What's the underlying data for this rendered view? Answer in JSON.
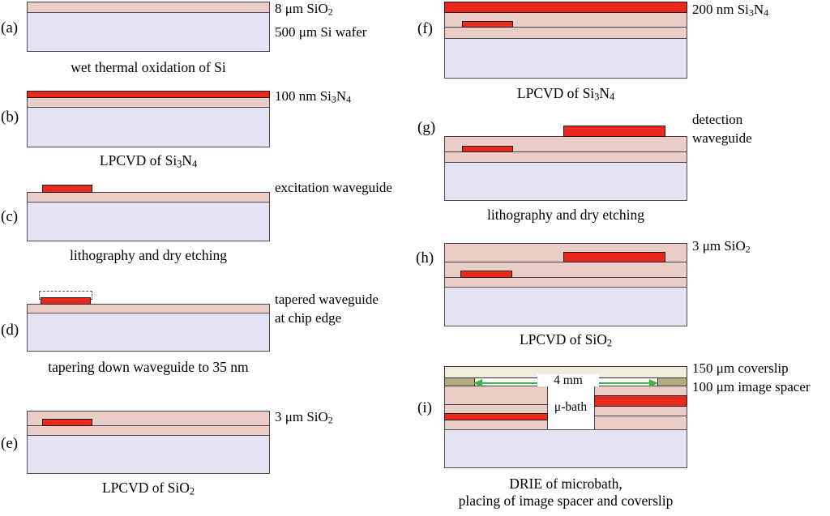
{
  "colors": {
    "oxide_pink": "#ebcdc7",
    "silicon_lavender": "#e5e2f1",
    "nitride_red": "#ea281c",
    "coverslip_cream": "#f0edde",
    "spacer_olive": "#b3ab82",
    "dimension_arrow_green": "#3fb347"
  },
  "panels": {
    "a": {
      "letter": "(a)",
      "labels": {
        "oxide": "8 μm SiO₂",
        "wafer": "500 μm Si wafer"
      },
      "caption": "wet thermal oxidation of Si"
    },
    "b": {
      "letter": "(b)",
      "labels": {
        "nitride": "100 nm Si₃N₄"
      },
      "caption": "LPCVD of Si₃N₄"
    },
    "c": {
      "letter": "(c)",
      "labels": {
        "waveguide": "excitation waveguide"
      },
      "caption": "lithography and dry etching"
    },
    "d": {
      "letter": "(d)",
      "labels": {
        "line1": "tapered waveguide",
        "line2": "at chip edge"
      },
      "caption": "tapering down waveguide to 35 nm"
    },
    "e": {
      "letter": "(e)",
      "labels": {
        "oxide": "3 μm SiO₂"
      },
      "caption": "LPCVD of SiO₂"
    },
    "f": {
      "letter": "(f)",
      "labels": {
        "nitride": "200 nm Si₃N₄"
      },
      "caption": "LPCVD of Si₃N₄"
    },
    "g": {
      "letter": "(g)",
      "labels": {
        "line1": "detection",
        "line2": "waveguide"
      },
      "caption": "lithography and dry etching"
    },
    "h": {
      "letter": "(h)",
      "labels": {
        "oxide": "3 μm SiO₂"
      },
      "caption": "LPCVD of SiO₂"
    },
    "i": {
      "letter": "(i)",
      "labels": {
        "coverslip": "150 μm coverslip",
        "spacer": "100 μm image spacer",
        "bath": "μ-bath",
        "dimension": "4 mm"
      },
      "caption_line1": "DRIE of microbath,",
      "caption_line2": "placing of image spacer and coverslip"
    }
  }
}
